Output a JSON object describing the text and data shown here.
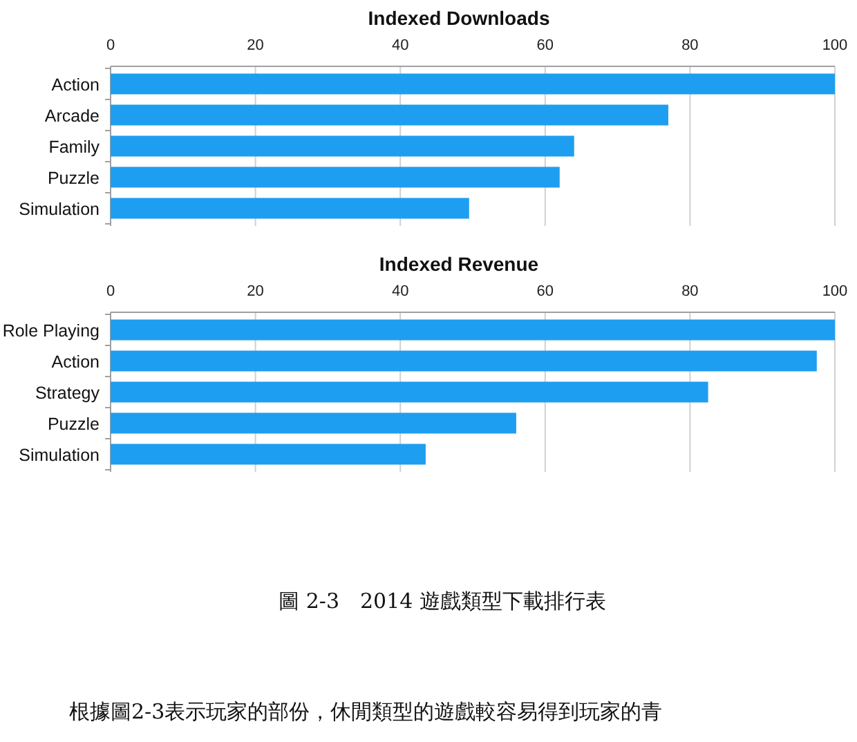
{
  "chart_data": [
    {
      "type": "bar",
      "orientation": "horizontal",
      "title": "Indexed Downloads",
      "categories": [
        "Action",
        "Arcade",
        "Family",
        "Puzzle",
        "Simulation"
      ],
      "series": [
        {
          "color": "#1e9ef0",
          "values": [
            100,
            77,
            64,
            62,
            49.5
          ]
        }
      ],
      "xlim": [
        0,
        100
      ],
      "xticks": [
        0,
        20,
        40,
        60,
        80,
        100
      ],
      "grid": "x"
    },
    {
      "type": "bar",
      "orientation": "horizontal",
      "title": "Indexed Revenue",
      "categories": [
        "Role Playing",
        "Action",
        "Strategy",
        "Puzzle",
        "Simulation"
      ],
      "series": [
        {
          "color": "#1e9ef0",
          "values": [
            100,
            97.5,
            82.5,
            56,
            43.5
          ]
        }
      ],
      "xlim": [
        0,
        100
      ],
      "xticks": [
        0,
        20,
        40,
        60,
        80,
        100
      ],
      "grid": "x",
      "annotations": [
        "圖 2-3　2014 遊戲類型下載排行表",
        "根據圖2-3表示玩家的部份，休閒類型的遊戲較容易得到玩家的青"
      ]
    }
  ]
}
